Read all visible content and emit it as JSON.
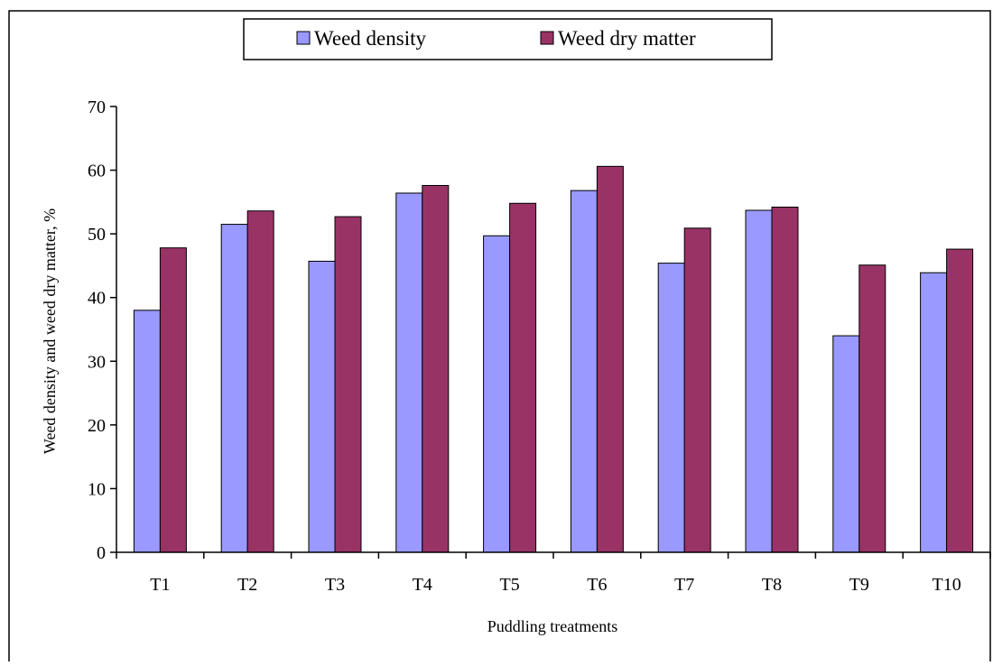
{
  "chart_data": {
    "type": "bar",
    "categories": [
      "T1",
      "T2",
      "T3",
      "T4",
      "T5",
      "T6",
      "T7",
      "T8",
      "T9",
      "T10"
    ],
    "series": [
      {
        "name": "Weed density",
        "color": "#9999ff",
        "values": [
          38.0,
          51.5,
          45.7,
          56.4,
          49.7,
          56.8,
          45.4,
          53.7,
          34.0,
          43.9
        ]
      },
      {
        "name": "Weed dry matter",
        "color": "#993366",
        "values": [
          47.8,
          53.6,
          52.7,
          57.6,
          54.8,
          60.6,
          50.9,
          54.2,
          45.1,
          47.6
        ]
      }
    ],
    "xlabel": "Puddling treatments",
    "ylabel": "Weed density and weed dry matter, %",
    "ylim": [
      0,
      70
    ],
    "yticks": [
      0,
      10,
      20,
      30,
      40,
      50,
      60,
      70
    ],
    "grid": false,
    "legend_position": "top-center"
  }
}
